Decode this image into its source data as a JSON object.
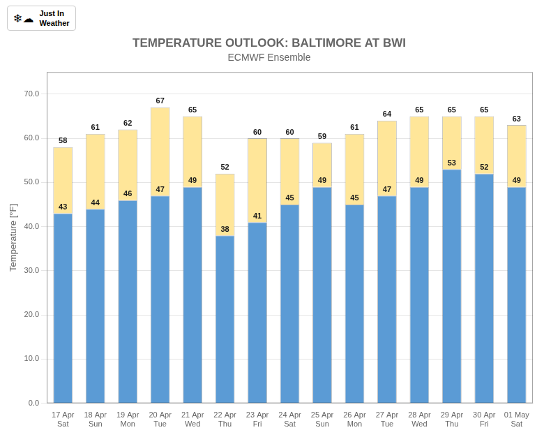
{
  "chart_data": {
    "type": "bar",
    "title": "TEMPERATURE OUTLOOK: BALTIMORE AT BWI",
    "subtitle": "ECMWF Ensemble",
    "y_label": "Temperature [°F]",
    "annotations": [
      "❄☁",
      "Just In",
      "Weather"
    ],
    "categories": [
      "17 Apr\nSat",
      "18 Apr\nSun",
      "19 Apr\nMon",
      "20 Apr\nTue",
      "21 Apr\nWed",
      "22 Apr\nThu",
      "23 Apr\nFri",
      "24 Apr\nSat",
      "25 Apr\nSun",
      "26 Apr\nMon",
      "27 Apr\nTue",
      "28 Apr\nWed",
      "29 Apr\nThu",
      "30 Apr\nFri",
      "01 May\nSat"
    ],
    "series": [
      {
        "color": "#5b9bd5",
        "values": [
          43,
          44,
          46,
          47,
          49,
          38,
          41,
          45,
          49,
          45,
          47,
          49,
          53,
          52,
          49
        ]
      },
      {
        "color": "#ffe699",
        "values": [
          58,
          61,
          62,
          67,
          65,
          52,
          60,
          60,
          59,
          61,
          64,
          65,
          65,
          65,
          63
        ]
      }
    ],
    "ylim": [
      0,
      75
    ],
    "yticks": [
      {
        "value": 0,
        "label": "0.0"
      },
      {
        "value": 10,
        "label": "10.0"
      },
      {
        "value": 20,
        "label": "20.0"
      },
      {
        "value": 30,
        "label": "30.0"
      },
      {
        "value": 40,
        "label": "40.0"
      },
      {
        "value": 50,
        "label": "50.0"
      },
      {
        "value": 60,
        "label": "60.0"
      },
      {
        "value": 70,
        "label": "70.0"
      }
    ],
    "grid": true,
    "data_labels": true
  }
}
